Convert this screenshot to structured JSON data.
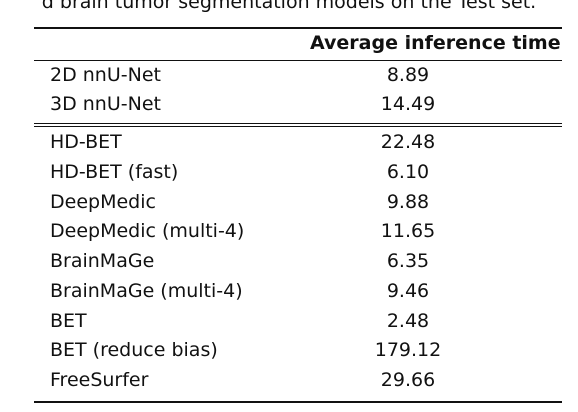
{
  "caption": "d brain tumor segmentation models on the Test set.",
  "table": {
    "header": {
      "method": "",
      "time": "Average inference time"
    },
    "group1": [
      {
        "method": "2D nnU-Net",
        "time": "8.89"
      },
      {
        "method": "3D nnU-Net",
        "time": "14.49"
      }
    ],
    "group2": [
      {
        "method": "HD-BET",
        "time": "22.48"
      },
      {
        "method": "HD-BET (fast)",
        "time": "6.10"
      },
      {
        "method": "DeepMedic",
        "time": "9.88"
      },
      {
        "method": "DeepMedic (multi-4)",
        "time": "11.65"
      },
      {
        "method": "BrainMaGe",
        "time": "6.35"
      },
      {
        "method": "BrainMaGe (multi-4)",
        "time": "9.46"
      },
      {
        "method": "BET",
        "time": "2.48"
      },
      {
        "method": "BET (reduce bias)",
        "time": "179.12"
      },
      {
        "method": "FreeSurfer",
        "time": "29.66"
      }
    ]
  }
}
